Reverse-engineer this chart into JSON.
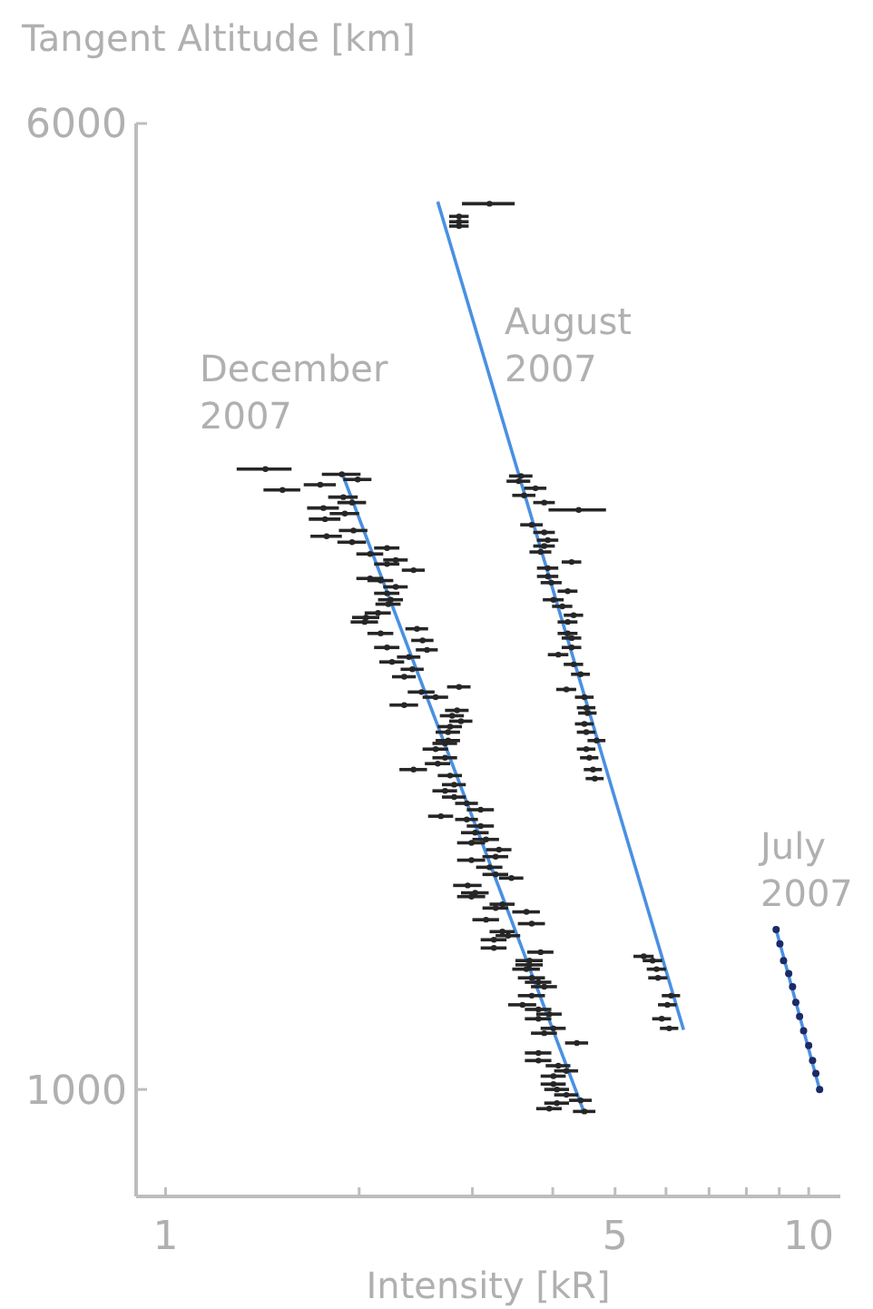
{
  "chart_data": {
    "type": "scatter",
    "xlabel": "Intensity [kR]",
    "ylabel": "Tangent Altitude [km]",
    "log": "xy",
    "xlim": [
      0.9,
      11.2
    ],
    "ylim": [
      820,
      6000
    ],
    "xticks": [
      1,
      {
        "value": 2,
        "label": null
      },
      {
        "value": 3,
        "label": null
      },
      {
        "value": 4,
        "label": null
      },
      5,
      {
        "value": 6,
        "label": null
      },
      {
        "value": 7,
        "label": null
      },
      {
        "value": 8,
        "label": null
      },
      {
        "value": 9,
        "label": null
      },
      10
    ],
    "yticks": [
      1000,
      6000
    ],
    "marker": "circle",
    "series": [
      {
        "name": "December 2007",
        "color": "#262626",
        "x": [
          1.43,
          1.88,
          1.99,
          1.74,
          1.52,
          1.89,
          1.95,
          1.76,
          1.9,
          1.77,
          1.96,
          1.78,
          1.95,
          2.21,
          2.08,
          2.28,
          2.21,
          2.43,
          2.08,
          2.16,
          2.28,
          2.21,
          2.24,
          2.22,
          2.14,
          2.05,
          2.04,
          2.46,
          2.16,
          2.51,
          2.21,
          2.55,
          2.39,
          2.25,
          2.42,
          2.35,
          2.86,
          2.5,
          2.63,
          2.35,
          2.84,
          2.79,
          2.88,
          2.77,
          2.75,
          2.75,
          2.72,
          2.63,
          2.72,
          2.65,
          2.43,
          2.77,
          2.81,
          2.72,
          2.81,
          2.94,
          3.09,
          2.68,
          2.94,
          3.09,
          3.03,
          3.15,
          2.99,
          3.3,
          3.26,
          2.99,
          3.19,
          3.26,
          3.45,
          2.95,
          3.03,
          2.99,
          3.34,
          3.26,
          3.64,
          3.15,
          3.71,
          3.34,
          3.41,
          3.24,
          3.24,
          3.83,
          3.68,
          3.68,
          3.64,
          3.71,
          3.8,
          3.88,
          3.71,
          3.59,
          3.8,
          3.95,
          3.8,
          4.01,
          3.88,
          4.36,
          3.8,
          3.8,
          4.08,
          4.2,
          4.01,
          4.01,
          4.06,
          4.2,
          4.42,
          4.06,
          3.95,
          4.48
        ],
        "values": [
          3160,
          3130,
          3100,
          3070,
          3040,
          3000,
          2970,
          2940,
          2910,
          2880,
          2820,
          2790,
          2760,
          2730,
          2700,
          2670,
          2650,
          2620,
          2580,
          2570,
          2540,
          2510,
          2480,
          2460,
          2420,
          2400,
          2380,
          2350,
          2330,
          2300,
          2270,
          2260,
          2230,
          2210,
          2180,
          2150,
          2110,
          2090,
          2070,
          2040,
          2020,
          2000,
          1980,
          1960,
          1940,
          1910,
          1900,
          1880,
          1850,
          1830,
          1810,
          1790,
          1760,
          1740,
          1720,
          1700,
          1680,
          1660,
          1650,
          1630,
          1610,
          1590,
          1580,
          1560,
          1540,
          1530,
          1510,
          1490,
          1480,
          1460,
          1440,
          1430,
          1410,
          1400,
          1390,
          1370,
          1360,
          1340,
          1330,
          1320,
          1300,
          1290,
          1270,
          1260,
          1250,
          1230,
          1220,
          1210,
          1190,
          1170,
          1160,
          1150,
          1140,
          1120,
          1110,
          1090,
          1070,
          1055,
          1045,
          1035,
          1025,
          1010,
          1000,
          990,
          980,
          975,
          965,
          960
        ],
        "xerrors": [
          0.14,
          0.13,
          0.1,
          0.1,
          0.1,
          0.1,
          0.1,
          0.1,
          0.1,
          0.1,
          0.1,
          0.1,
          0.1,
          0.1,
          0.1,
          0.1,
          0.1,
          0.1,
          0.1,
          0.1,
          0.1,
          0.1,
          0.1,
          0.1,
          0.1,
          0.1,
          0.1,
          0.1,
          0.1,
          0.1,
          0.1,
          0.1,
          0.1,
          0.1,
          0.1,
          0.1,
          0.12,
          0.12,
          0.12,
          0.12,
          0.12,
          0.12,
          0.12,
          0.12,
          0.12,
          0.12,
          0.12,
          0.12,
          0.12,
          0.12,
          0.12,
          0.12,
          0.12,
          0.12,
          0.12,
          0.12,
          0.15,
          0.12,
          0.12,
          0.15,
          0.15,
          0.15,
          0.15,
          0.15,
          0.15,
          0.15,
          0.15,
          0.15,
          0.15,
          0.15,
          0.15,
          0.15,
          0.15,
          0.15,
          0.18,
          0.15,
          0.18,
          0.15,
          0.15,
          0.15,
          0.15,
          0.18,
          0.18,
          0.18,
          0.18,
          0.18,
          0.18,
          0.18,
          0.18,
          0.18,
          0.18,
          0.18,
          0.18,
          0.18,
          0.18,
          0.18,
          0.18,
          0.18,
          0.18,
          0.18,
          0.18,
          0.18,
          0.18,
          0.18,
          0.18,
          0.18,
          0.18,
          0.18
        ]
      },
      {
        "name": "August 2007",
        "color": "#262626",
        "x": [
          3.19,
          2.86,
          2.86,
          2.86,
          3.57,
          3.54,
          3.76,
          3.61,
          3.88,
          4.39,
          3.71,
          3.88,
          3.93,
          3.88,
          3.83,
          4.28,
          3.93,
          3.93,
          3.98,
          4.22,
          4.01,
          4.14,
          4.31,
          4.22,
          4.22,
          4.28,
          4.28,
          4.08,
          4.31,
          4.42,
          4.2,
          4.48,
          4.51,
          4.53,
          4.48,
          4.51,
          4.68,
          4.51,
          4.56,
          4.62,
          4.65,
          5.54,
          5.72,
          5.8,
          5.83,
          6.11,
          6.03,
          5.91,
          6.07
        ],
        "values": [
          5170,
          5050,
          5000,
          4960,
          3120,
          3090,
          3050,
          3010,
          2970,
          2930,
          2850,
          2810,
          2770,
          2740,
          2710,
          2660,
          2630,
          2590,
          2560,
          2520,
          2480,
          2450,
          2410,
          2380,
          2330,
          2310,
          2270,
          2240,
          2200,
          2160,
          2100,
          2070,
          2030,
          2010,
          1970,
          1940,
          1910,
          1880,
          1850,
          1810,
          1780,
          1280,
          1270,
          1250,
          1230,
          1190,
          1170,
          1140,
          1120
        ],
        "xerrors": [
          0.3,
          0.1,
          0.1,
          0.1,
          0.15,
          0.15,
          0.15,
          0.15,
          0.15,
          0.45,
          0.15,
          0.15,
          0.15,
          0.15,
          0.15,
          0.15,
          0.15,
          0.15,
          0.15,
          0.15,
          0.15,
          0.15,
          0.15,
          0.15,
          0.15,
          0.15,
          0.15,
          0.15,
          0.15,
          0.15,
          0.15,
          0.15,
          0.15,
          0.15,
          0.15,
          0.15,
          0.15,
          0.15,
          0.15,
          0.15,
          0.15,
          0.2,
          0.2,
          0.2,
          0.2,
          0.2,
          0.2,
          0.2,
          0.2
        ]
      },
      {
        "name": "July 2007",
        "color": "#1c2a66",
        "x": [
          8.9,
          9.02,
          9.14,
          9.31,
          9.44,
          9.55,
          9.68,
          9.82,
          10.0,
          10.14,
          10.26,
          10.4
        ],
        "values": [
          1345,
          1310,
          1270,
          1240,
          1210,
          1175,
          1145,
          1115,
          1085,
          1055,
          1030,
          1000
        ]
      },
      {
        "type": "line",
        "color": "#4a90e2",
        "marker": "none",
        "x": [
          1.88,
          4.47
        ],
        "values": [
          3140,
          960
        ]
      },
      {
        "type": "line",
        "color": "#4a90e2",
        "marker": "none",
        "x": [
          2.65,
          6.39
        ],
        "values": [
          5190,
          1117
        ]
      },
      {
        "type": "line",
        "color": "#4a90e2",
        "marker": "none",
        "x": [
          8.9,
          10.4
        ],
        "values": [
          1345,
          1000
        ]
      }
    ]
  }
}
